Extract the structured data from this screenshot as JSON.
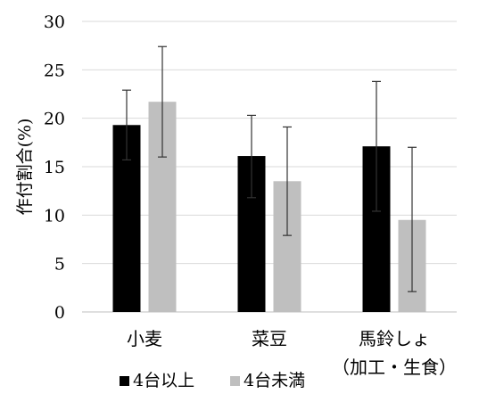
{
  "chart_data": {
    "type": "bar",
    "ylabel": "作付割合(%)",
    "ylim": [
      0,
      30
    ],
    "yticks": [
      "0",
      "5",
      "10",
      "15",
      "20",
      "25",
      "30"
    ],
    "grid": true,
    "legend_position": "bottom-left",
    "categories": [
      {
        "line1": "小麦",
        "line2": ""
      },
      {
        "line1": "菜豆",
        "line2": ""
      },
      {
        "line1": "馬鈴しょ",
        "line2": "（加工・生食）"
      }
    ],
    "series": [
      {
        "name": "4台以上",
        "color": "#000000",
        "values": [
          19.3,
          16.1,
          17.1
        ],
        "error_low": [
          15.7,
          11.8,
          10.4
        ],
        "error_high": [
          22.9,
          20.3,
          23.8
        ]
      },
      {
        "name": "4台未満",
        "color": "#bfbfbf",
        "values": [
          21.7,
          13.5,
          9.5
        ],
        "error_low": [
          16.0,
          7.9,
          2.1
        ],
        "error_high": [
          27.4,
          19.1,
          17.0
        ]
      }
    ]
  }
}
